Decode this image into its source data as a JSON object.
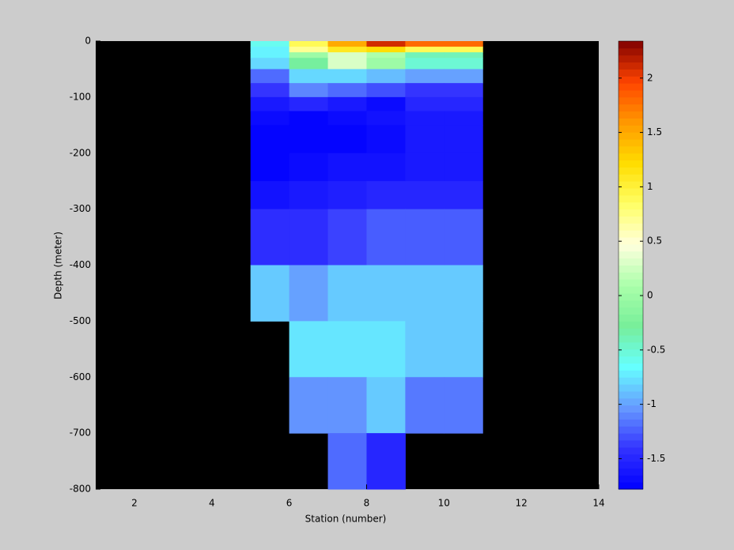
{
  "chart_data": {
    "type": "heatmap",
    "xlabel": "Station (number)",
    "ylabel": "Depth (meter)",
    "xlim": [
      1,
      14
    ],
    "xticks": [
      2,
      4,
      6,
      8,
      10,
      12,
      14
    ],
    "ylim": [
      -800,
      0
    ],
    "yticks": [
      0,
      -100,
      -200,
      -300,
      -400,
      -500,
      -600,
      -700,
      -800
    ],
    "background": "#000000",
    "x": [
      5,
      6,
      7,
      8,
      9,
      10,
      11
    ],
    "y": [
      0,
      -10,
      -20,
      -30,
      -50,
      -75,
      -100,
      -125,
      -150,
      -200,
      -250,
      -300,
      -400,
      -500,
      -600,
      -700,
      -800
    ],
    "z": [
      [
        -0.6,
        0.9,
        1.5,
        2.1,
        1.8,
        1.8
      ],
      [
        -0.7,
        0.7,
        1.1,
        1.2,
        0.9,
        0.9
      ],
      [
        -0.7,
        0.0,
        0.3,
        0.1,
        -0.4,
        -0.4
      ],
      [
        -0.8,
        -0.3,
        0.3,
        0.0,
        -0.5,
        -0.5
      ],
      [
        -1.2,
        -0.8,
        -0.8,
        -0.9,
        -1.0,
        -1.0
      ],
      [
        -1.4,
        -1.1,
        -1.2,
        -1.3,
        -1.4,
        -1.4
      ],
      [
        -1.6,
        -1.5,
        -1.6,
        -1.7,
        -1.5,
        -1.5
      ],
      [
        -1.7,
        -1.75,
        -1.7,
        -1.65,
        -1.6,
        -1.6
      ],
      [
        -1.75,
        -1.75,
        -1.75,
        -1.7,
        -1.6,
        -1.6
      ],
      [
        -1.75,
        -1.7,
        -1.65,
        -1.65,
        -1.6,
        -1.6
      ],
      [
        -1.65,
        -1.6,
        -1.55,
        -1.5,
        -1.5,
        -1.5
      ],
      [
        -1.45,
        -1.45,
        -1.35,
        -1.25,
        -1.25,
        -1.25
      ],
      [
        -0.85,
        -1.0,
        -0.85,
        -0.85,
        -0.85,
        -0.85
      ],
      [
        null,
        -0.75,
        -0.75,
        -0.75,
        -0.85,
        -0.85
      ],
      [
        null,
        -1.05,
        -1.05,
        -0.85,
        -1.15,
        -1.15
      ],
      [
        null,
        null,
        -1.2,
        -1.5,
        null,
        null
      ]
    ],
    "clim": [
      -1.78,
      2.34
    ],
    "cticks": [
      -1.5,
      -1,
      -0.5,
      0,
      0.5,
      1,
      1.5,
      2
    ],
    "colormap": [
      "#0000ff",
      "#3333ff",
      "#6699ff",
      "#66ffff",
      "#77ee99",
      "#aaffaa",
      "#ffffdd",
      "#ffff66",
      "#ffdd00",
      "#ff9900",
      "#ff4400",
      "#800000"
    ]
  }
}
